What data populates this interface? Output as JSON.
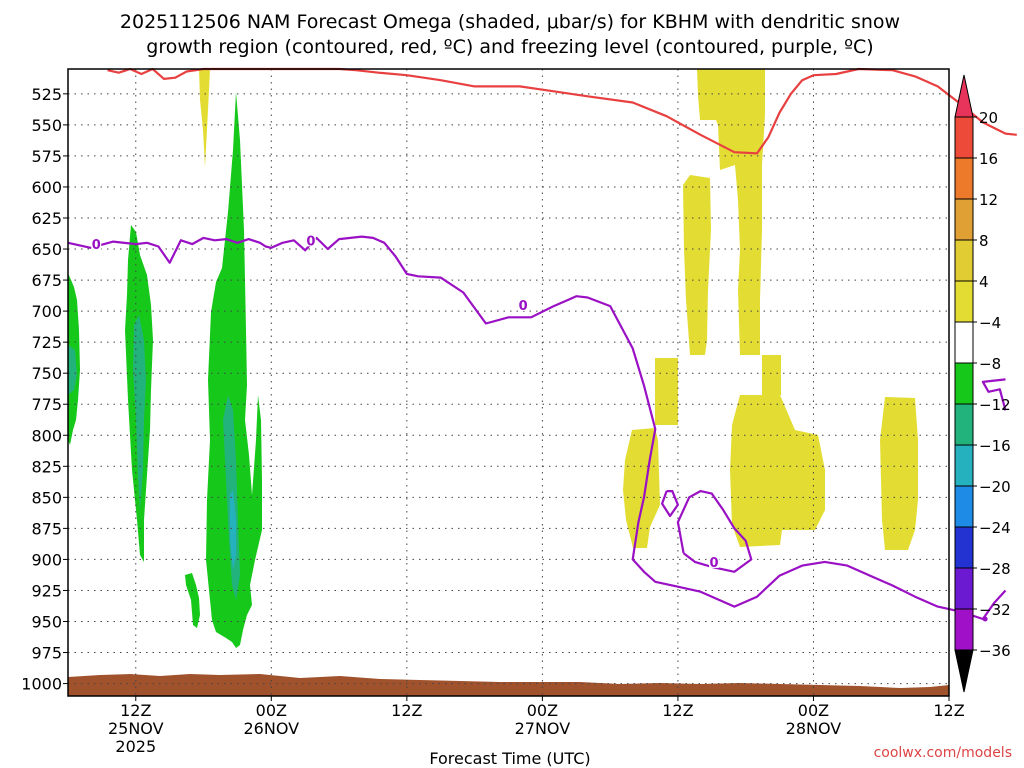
{
  "chart_data": {
    "type": "time-height cross section",
    "title_line1": "2025112506 NAM Forecast Omega (shaded, μbar/s) for KBHM with dendritic snow",
    "title_line2": "growth region (contoured, red, ºC) and freezing level (contoured, purple, ºC)",
    "xlabel": "Forecast Time (UTC)",
    "credit": "coolwx.com/models",
    "x_range_hours": [
      0,
      78
    ],
    "y_range_hPa": [
      1010,
      505
    ],
    "y_ticks": [
      525,
      550,
      575,
      600,
      625,
      650,
      675,
      700,
      725,
      750,
      775,
      800,
      825,
      850,
      875,
      900,
      925,
      950,
      975,
      1000
    ],
    "x_ticks": [
      {
        "hour": 6,
        "label": "12Z",
        "date": "25NOV",
        "year": "2025"
      },
      {
        "hour": 18,
        "label": "00Z",
        "date": "26NOV",
        "year": ""
      },
      {
        "hour": 30,
        "label": "12Z",
        "date": "",
        "year": ""
      },
      {
        "hour": 42,
        "label": "00Z",
        "date": "27NOV",
        "year": ""
      },
      {
        "hour": 54,
        "label": "12Z",
        "date": "",
        "year": ""
      },
      {
        "hour": 66,
        "label": "00Z",
        "date": "28NOV",
        "year": ""
      },
      {
        "hour": 78,
        "label": "12Z",
        "date": "",
        "year": ""
      }
    ],
    "colorbar": {
      "levels": [
        20,
        16,
        12,
        8,
        4,
        -4,
        -8,
        -12,
        -16,
        -20,
        -24,
        -28,
        -32,
        -36
      ],
      "colors": [
        "#e8335a",
        "#ee4a3a",
        "#ec7a2a",
        "#e1a033",
        "#e1cd33",
        "#e3dd33",
        "#ffffff",
        "#16c81a",
        "#22b37c",
        "#26b1be",
        "#1e8ce6",
        "#2233d2",
        "#6c1ad2",
        "#a010c8",
        "#a9a9a9",
        "#000000"
      ]
    },
    "series": [
      {
        "name": "dendritic growth region (red, ºC)",
        "color": "#e84040",
        "points": [
          [
            3.5,
            506
          ],
          [
            4.5,
            508
          ],
          [
            5.5,
            505
          ],
          [
            6.5,
            509
          ],
          [
            7.5,
            505
          ],
          [
            8.5,
            513
          ],
          [
            9.5,
            512
          ],
          [
            10.5,
            507
          ],
          [
            12,
            505
          ],
          [
            15,
            505
          ],
          [
            21,
            505
          ],
          [
            24,
            505
          ],
          [
            25.5,
            506
          ],
          [
            27.5,
            508
          ],
          [
            30,
            510
          ],
          [
            33,
            514
          ],
          [
            36,
            519
          ],
          [
            40,
            519
          ],
          [
            43,
            523
          ],
          [
            46,
            527
          ],
          [
            50,
            532
          ],
          [
            53,
            543
          ],
          [
            56,
            558
          ],
          [
            59,
            572
          ],
          [
            61,
            573
          ],
          [
            62,
            560
          ],
          [
            63,
            540
          ],
          [
            64,
            525
          ],
          [
            65,
            514
          ],
          [
            66,
            510
          ],
          [
            68,
            509
          ],
          [
            70,
            505
          ],
          [
            73,
            506
          ],
          [
            75,
            511
          ],
          [
            77,
            519
          ],
          [
            79,
            533
          ],
          [
            81,
            548
          ],
          [
            83,
            557
          ],
          [
            84,
            558
          ]
        ]
      },
      {
        "name": "freezing level 0 (purple, ºC)",
        "color": "#9a10c4",
        "label": "0",
        "points": [
          [
            0,
            645
          ],
          [
            2,
            649
          ],
          [
            4,
            644
          ],
          [
            6,
            646
          ],
          [
            7,
            645
          ],
          [
            8,
            648
          ],
          [
            9,
            661
          ],
          [
            10,
            643
          ],
          [
            11,
            646
          ],
          [
            12,
            641
          ],
          [
            13,
            643
          ],
          [
            14,
            642
          ],
          [
            15,
            645
          ],
          [
            16,
            642
          ],
          [
            17,
            645
          ],
          [
            17.5,
            648
          ],
          [
            18,
            649
          ],
          [
            19,
            645
          ],
          [
            20,
            643
          ],
          [
            21,
            651
          ],
          [
            22,
            641
          ],
          [
            23,
            650
          ],
          [
            24,
            642
          ],
          [
            25,
            641
          ],
          [
            26,
            640
          ],
          [
            27,
            641
          ],
          [
            28,
            645
          ],
          [
            29,
            656
          ],
          [
            30,
            670
          ],
          [
            31,
            672
          ],
          [
            33,
            673
          ],
          [
            35,
            685
          ],
          [
            37,
            710
          ],
          [
            39,
            705
          ],
          [
            41,
            705
          ],
          [
            43,
            696
          ],
          [
            44,
            692
          ],
          [
            45,
            688
          ],
          [
            46,
            689
          ],
          [
            48,
            696
          ],
          [
            50,
            730
          ],
          [
            51,
            760
          ],
          [
            52,
            795
          ],
          [
            51.5,
            820
          ],
          [
            51,
            850
          ],
          [
            50.5,
            870
          ],
          [
            50,
            900
          ],
          [
            51,
            910
          ],
          [
            52,
            918
          ],
          [
            54,
            922
          ],
          [
            56,
            926
          ],
          [
            59,
            938
          ],
          [
            61,
            930
          ],
          [
            63,
            913
          ],
          [
            65,
            905
          ],
          [
            67,
            902
          ],
          [
            69,
            905
          ],
          [
            71,
            913
          ],
          [
            73,
            921
          ],
          [
            75,
            930
          ],
          [
            77,
            938
          ],
          [
            79,
            942
          ],
          [
            81,
            948
          ],
          [
            82,
            935
          ],
          [
            83,
            925
          ]
        ]
      },
      {
        "name": "freezing level 0 isolated contour",
        "color": "#9a10c4",
        "points": [
          [
            54.5,
            895
          ],
          [
            54,
            870
          ],
          [
            55,
            850
          ],
          [
            56,
            845
          ],
          [
            57,
            847
          ],
          [
            58,
            860
          ],
          [
            59,
            875
          ],
          [
            60,
            885
          ],
          [
            60.5,
            900
          ],
          [
            59,
            910
          ],
          [
            57,
            906
          ],
          [
            55.5,
            902
          ],
          [
            54.5,
            895
          ]
        ]
      },
      {
        "name": "freezing level 0 small loop",
        "color": "#9a10c4",
        "points": [
          [
            53,
            845
          ],
          [
            52.6,
            855
          ],
          [
            53.3,
            865
          ],
          [
            54,
            856
          ],
          [
            53.5,
            845
          ],
          [
            53,
            845
          ]
        ]
      },
      {
        "name": "freezing level 0 right edge",
        "color": "#9a10c4",
        "points": [
          [
            83,
            755
          ],
          [
            81,
            757
          ],
          [
            81.5,
            765
          ],
          [
            82.5,
            763
          ],
          [
            83,
            780
          ]
        ]
      }
    ]
  }
}
